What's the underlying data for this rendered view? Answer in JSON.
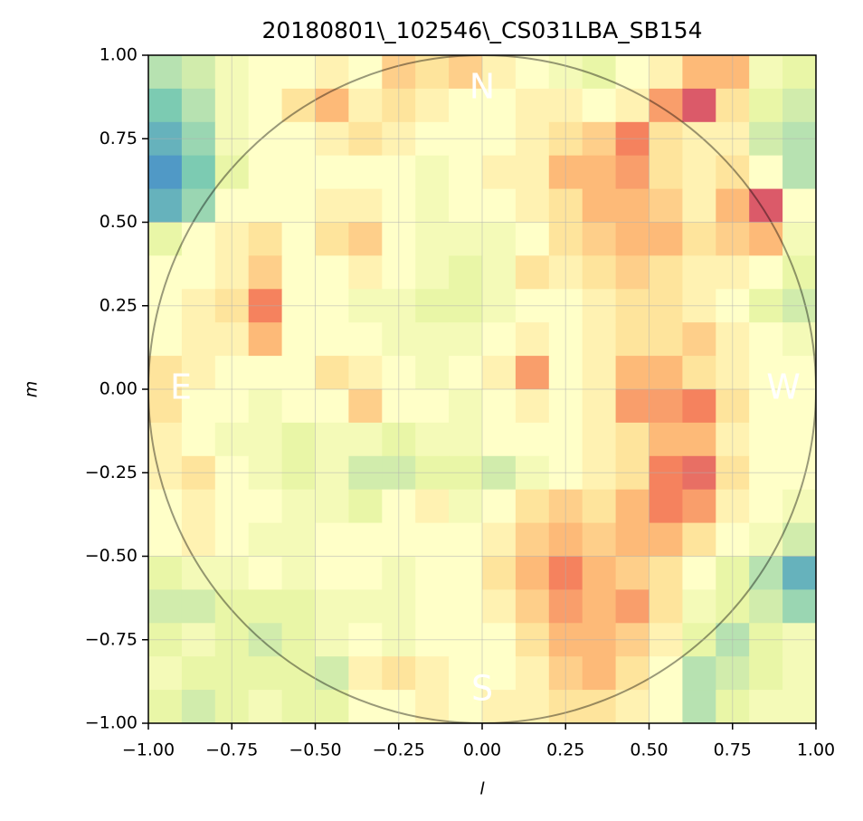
{
  "chart_data": {
    "type": "heatmap",
    "title": "20180801\\_102546\\_CS031LBA_SB154",
    "xlabel": "l",
    "ylabel": "m",
    "xlim": [
      -1,
      1
    ],
    "ylim": [
      -1,
      1
    ],
    "xticks": [
      {
        "value": -1,
        "label": "−1.00"
      },
      {
        "value": -0.75,
        "label": "−0.75"
      },
      {
        "value": -0.5,
        "label": "−0.50"
      },
      {
        "value": -0.25,
        "label": "−0.25"
      },
      {
        "value": 0,
        "label": "0.00"
      },
      {
        "value": 0.25,
        "label": "0.25"
      },
      {
        "value": 0.5,
        "label": "0.50"
      },
      {
        "value": 0.75,
        "label": "0.75"
      },
      {
        "value": 1,
        "label": "1.00"
      }
    ],
    "yticks": [
      {
        "value": -1,
        "label": "−1.00"
      },
      {
        "value": -0.75,
        "label": "−0.75"
      },
      {
        "value": -0.5,
        "label": "−0.50"
      },
      {
        "value": -0.25,
        "label": "−0.25"
      },
      {
        "value": 0,
        "label": "0.00"
      },
      {
        "value": 0.25,
        "label": "0.25"
      },
      {
        "value": 0.5,
        "label": "0.50"
      },
      {
        "value": 0.75,
        "label": "0.75"
      },
      {
        "value": 1,
        "label": "1.00"
      }
    ],
    "grid": true,
    "colormap": [
      "#5e4fa2",
      "#3288bd",
      "#66c2a5",
      "#abdda4",
      "#e6f598",
      "#ffffbf",
      "#fee08b",
      "#fdae61",
      "#f46d43",
      "#d53e4f",
      "#9e0142"
    ],
    "annotations": [
      "N",
      "S",
      "E",
      "W"
    ],
    "z": [
      [
        0.3,
        0.35,
        0.45,
        0.5,
        0.5,
        0.55,
        0.5,
        0.65,
        0.6,
        0.65,
        0.55,
        0.5,
        0.45,
        0.4,
        0.5,
        0.55,
        0.7,
        0.7,
        0.45,
        0.4
      ],
      [
        0.2,
        0.3,
        0.45,
        0.5,
        0.6,
        0.7,
        0.55,
        0.6,
        0.55,
        0.5,
        0.5,
        0.55,
        0.55,
        0.5,
        0.55,
        0.75,
        0.9,
        0.6,
        0.4,
        0.35
      ],
      [
        0.15,
        0.25,
        0.45,
        0.5,
        0.5,
        0.55,
        0.6,
        0.55,
        0.5,
        0.5,
        0.5,
        0.55,
        0.6,
        0.65,
        0.8,
        0.6,
        0.55,
        0.55,
        0.35,
        0.3
      ],
      [
        0.1,
        0.2,
        0.4,
        0.5,
        0.5,
        0.5,
        0.5,
        0.5,
        0.45,
        0.5,
        0.55,
        0.55,
        0.7,
        0.7,
        0.75,
        0.6,
        0.55,
        0.6,
        0.5,
        0.3
      ],
      [
        0.15,
        0.25,
        0.5,
        0.5,
        0.5,
        0.55,
        0.55,
        0.5,
        0.45,
        0.5,
        0.5,
        0.55,
        0.6,
        0.7,
        0.7,
        0.65,
        0.55,
        0.7,
        0.9,
        0.5
      ],
      [
        0.4,
        0.5,
        0.55,
        0.6,
        0.5,
        0.6,
        0.65,
        0.5,
        0.45,
        0.45,
        0.45,
        0.5,
        0.6,
        0.65,
        0.7,
        0.7,
        0.6,
        0.65,
        0.7,
        0.45
      ],
      [
        0.5,
        0.5,
        0.55,
        0.65,
        0.5,
        0.5,
        0.55,
        0.5,
        0.45,
        0.4,
        0.45,
        0.6,
        0.55,
        0.6,
        0.65,
        0.6,
        0.55,
        0.55,
        0.5,
        0.4
      ],
      [
        0.5,
        0.55,
        0.6,
        0.8,
        0.5,
        0.5,
        0.45,
        0.45,
        0.4,
        0.4,
        0.45,
        0.5,
        0.5,
        0.55,
        0.6,
        0.6,
        0.55,
        0.5,
        0.4,
        0.35
      ],
      [
        0.5,
        0.55,
        0.55,
        0.7,
        0.5,
        0.5,
        0.5,
        0.45,
        0.45,
        0.45,
        0.5,
        0.55,
        0.5,
        0.55,
        0.6,
        0.6,
        0.65,
        0.55,
        0.5,
        0.45
      ],
      [
        0.6,
        0.55,
        0.5,
        0.5,
        0.5,
        0.6,
        0.55,
        0.5,
        0.45,
        0.5,
        0.55,
        0.75,
        0.5,
        0.55,
        0.7,
        0.7,
        0.6,
        0.55,
        0.5,
        0.5
      ],
      [
        0.6,
        0.5,
        0.5,
        0.45,
        0.5,
        0.5,
        0.65,
        0.5,
        0.5,
        0.45,
        0.5,
        0.55,
        0.5,
        0.55,
        0.75,
        0.75,
        0.8,
        0.6,
        0.5,
        0.5
      ],
      [
        0.55,
        0.5,
        0.45,
        0.45,
        0.4,
        0.45,
        0.45,
        0.4,
        0.45,
        0.45,
        0.5,
        0.5,
        0.5,
        0.55,
        0.6,
        0.7,
        0.7,
        0.55,
        0.5,
        0.5
      ],
      [
        0.55,
        0.6,
        0.5,
        0.45,
        0.4,
        0.45,
        0.35,
        0.35,
        0.4,
        0.4,
        0.35,
        0.45,
        0.5,
        0.55,
        0.6,
        0.8,
        0.85,
        0.6,
        0.5,
        0.5
      ],
      [
        0.5,
        0.55,
        0.5,
        0.5,
        0.45,
        0.45,
        0.4,
        0.5,
        0.55,
        0.45,
        0.5,
        0.6,
        0.65,
        0.6,
        0.7,
        0.8,
        0.75,
        0.55,
        0.5,
        0.45
      ],
      [
        0.5,
        0.55,
        0.5,
        0.45,
        0.45,
        0.5,
        0.5,
        0.5,
        0.5,
        0.5,
        0.55,
        0.65,
        0.7,
        0.65,
        0.7,
        0.7,
        0.6,
        0.5,
        0.45,
        0.35
      ],
      [
        0.4,
        0.45,
        0.45,
        0.5,
        0.45,
        0.5,
        0.5,
        0.45,
        0.5,
        0.5,
        0.6,
        0.7,
        0.8,
        0.7,
        0.65,
        0.6,
        0.5,
        0.4,
        0.3,
        0.15
      ],
      [
        0.35,
        0.35,
        0.4,
        0.4,
        0.4,
        0.45,
        0.45,
        0.45,
        0.5,
        0.5,
        0.55,
        0.65,
        0.75,
        0.7,
        0.75,
        0.6,
        0.45,
        0.4,
        0.35,
        0.25
      ],
      [
        0.4,
        0.45,
        0.4,
        0.35,
        0.4,
        0.45,
        0.5,
        0.45,
        0.5,
        0.5,
        0.5,
        0.6,
        0.7,
        0.7,
        0.65,
        0.55,
        0.4,
        0.3,
        0.4,
        0.45
      ],
      [
        0.45,
        0.4,
        0.4,
        0.4,
        0.4,
        0.35,
        0.55,
        0.6,
        0.55,
        0.5,
        0.5,
        0.55,
        0.65,
        0.7,
        0.6,
        0.5,
        0.3,
        0.35,
        0.4,
        0.45
      ],
      [
        0.4,
        0.35,
        0.4,
        0.45,
        0.4,
        0.4,
        0.5,
        0.5,
        0.55,
        0.5,
        0.55,
        0.55,
        0.6,
        0.6,
        0.55,
        0.5,
        0.3,
        0.4,
        0.45,
        0.45
      ]
    ]
  }
}
